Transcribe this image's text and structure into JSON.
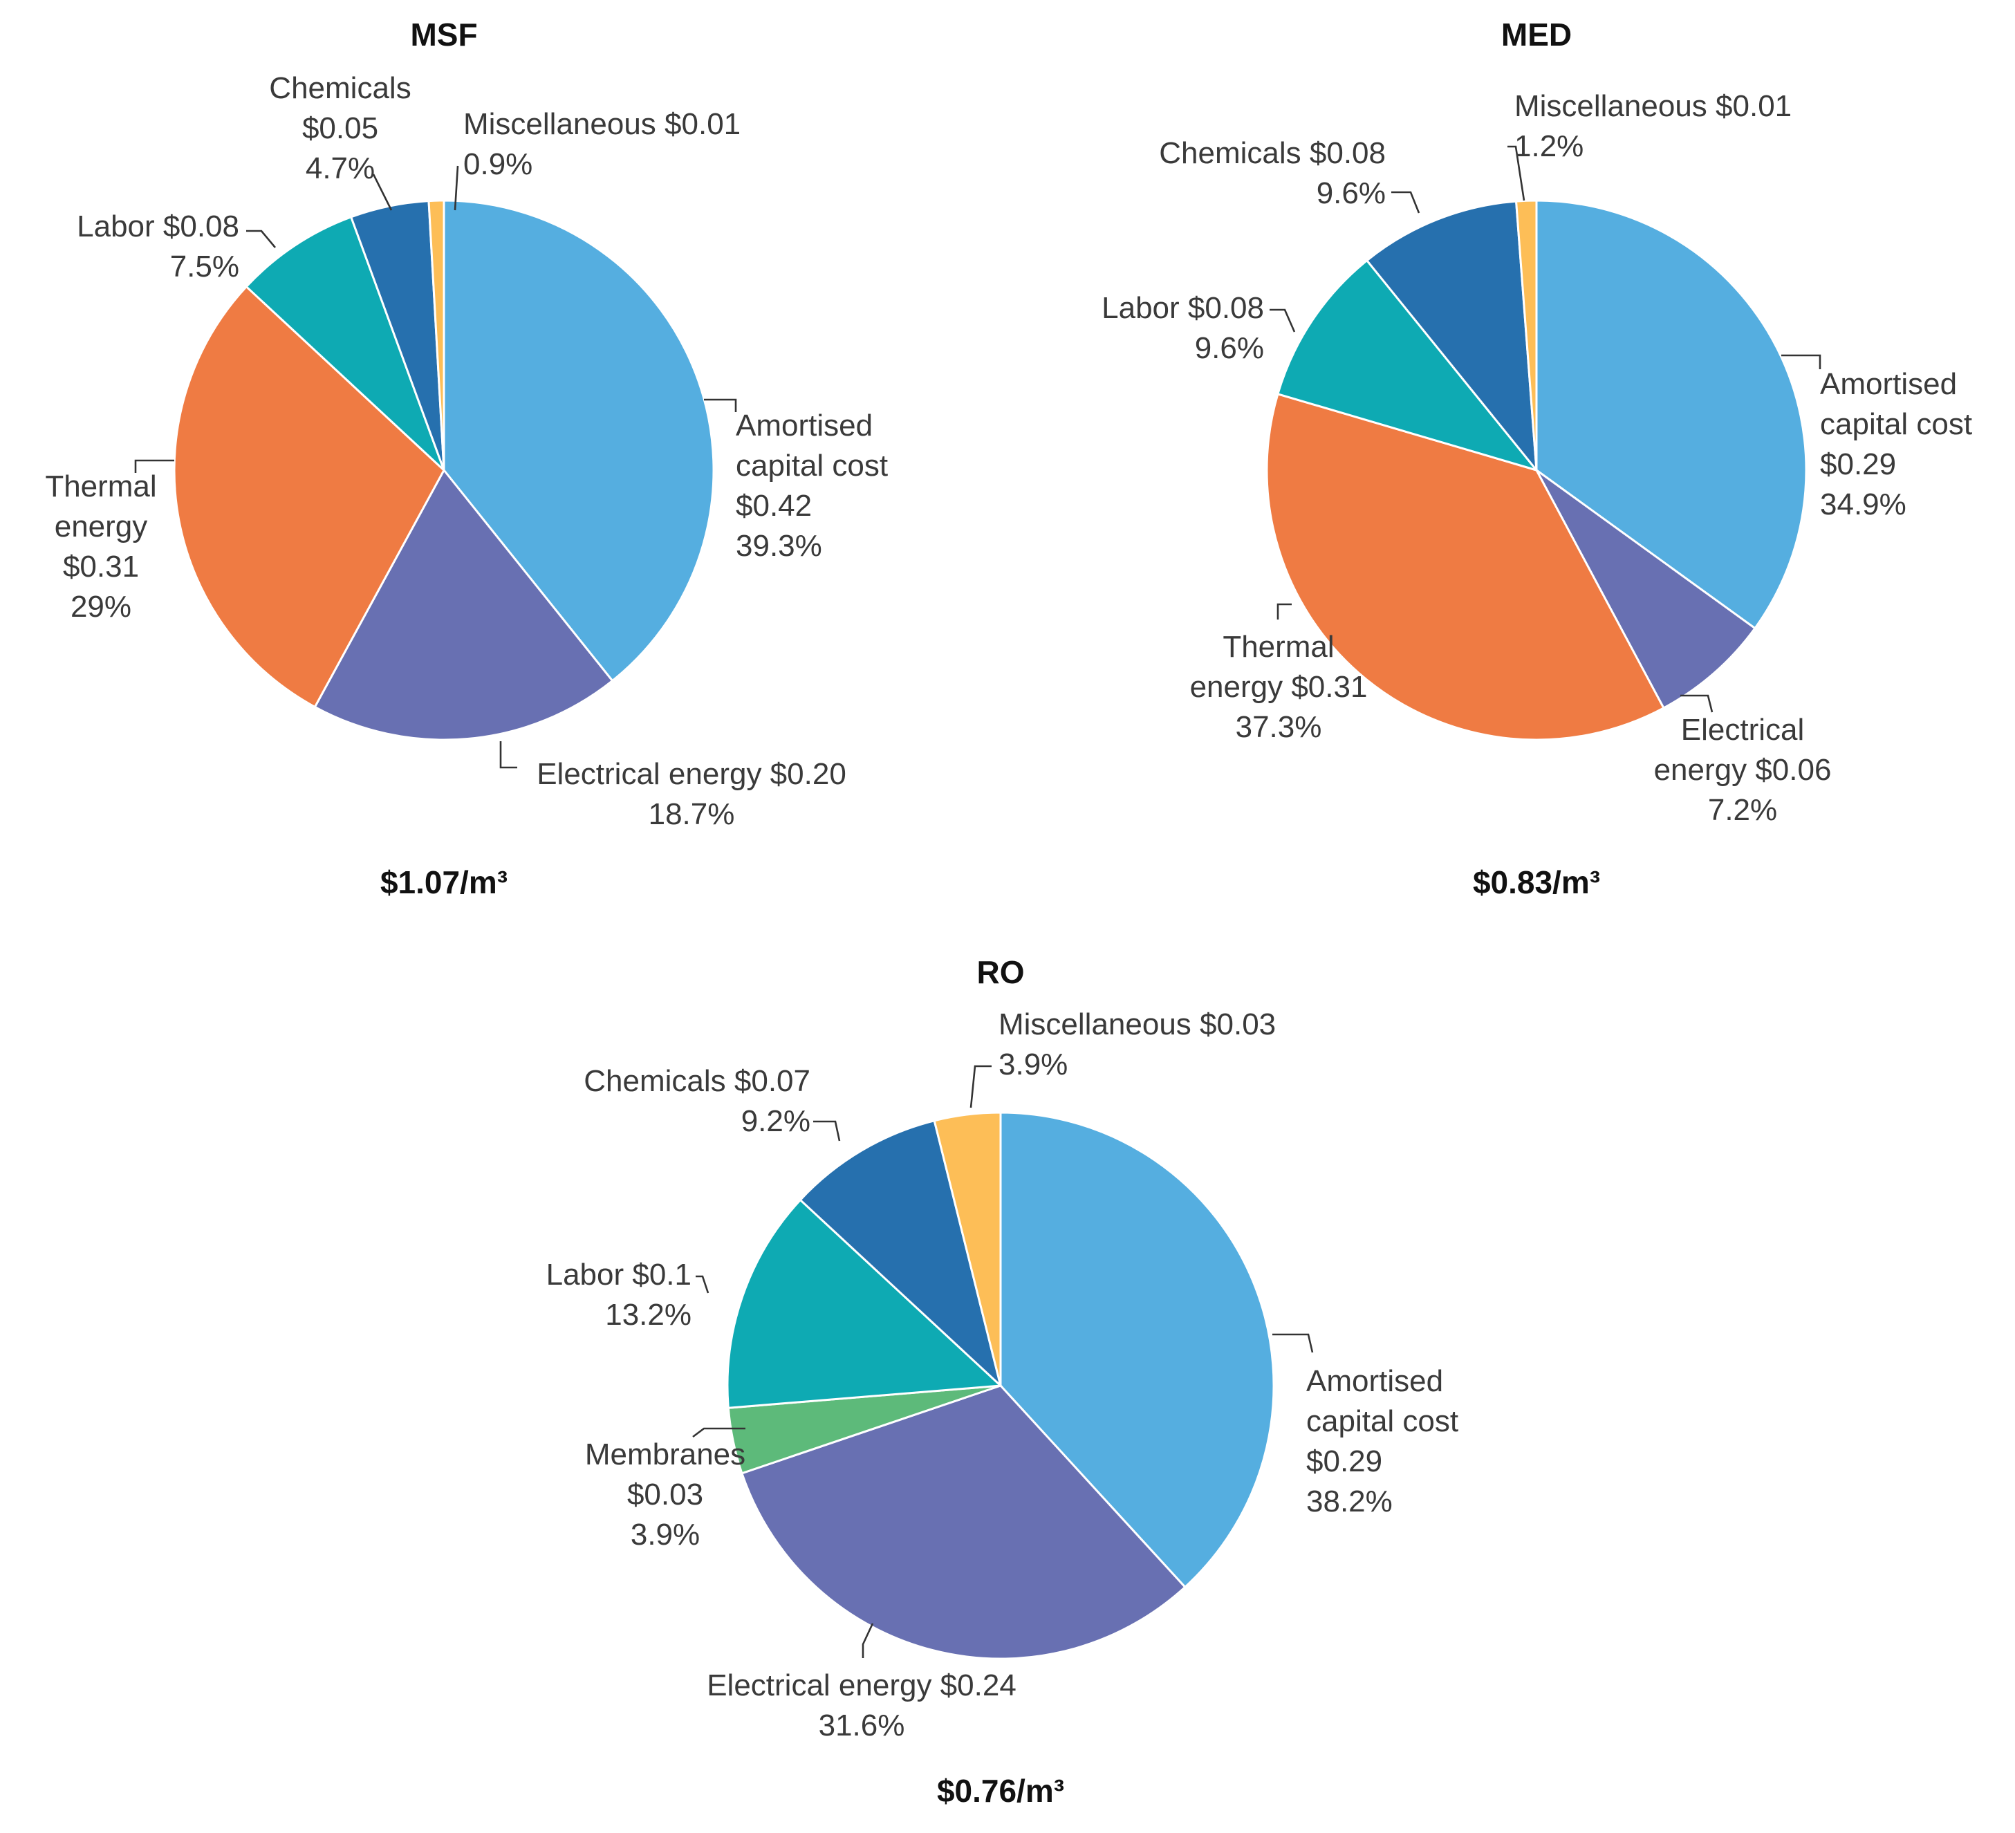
{
  "colors": {
    "capital": "#55aee0",
    "electrical": "#6870b2",
    "thermal": "#ef7b43",
    "labor": "#0eaab3",
    "chemicals": "#2670ae",
    "misc": "#fdbe57",
    "membranes": "#5dba7a"
  },
  "chart_data": [
    {
      "type": "pie",
      "title": "MSF",
      "total": "$1.07/m³",
      "slices": [
        {
          "key": "capital",
          "value": 0.42,
          "percent": 39.3,
          "lines": [
            "Amortised",
            "capital cost",
            "$0.42",
            "39.3%"
          ]
        },
        {
          "key": "electrical",
          "value": 0.2,
          "percent": 18.7,
          "lines": [
            "Electrical energy $0.20",
            "18.7%"
          ]
        },
        {
          "key": "thermal",
          "value": 0.31,
          "percent": 29.0,
          "lines": [
            "Thermal",
            "energy",
            "$0.31",
            "29%"
          ]
        },
        {
          "key": "labor",
          "value": 0.08,
          "percent": 7.5,
          "lines": [
            "Labor $0.08",
            "7.5%"
          ]
        },
        {
          "key": "chemicals",
          "value": 0.05,
          "percent": 4.7,
          "lines": [
            "Chemicals",
            "$0.05",
            "4.7%"
          ]
        },
        {
          "key": "misc",
          "value": 0.01,
          "percent": 0.9,
          "lines": [
            "Miscellaneous $0.01",
            "0.9%"
          ]
        }
      ]
    },
    {
      "type": "pie",
      "title": "MED",
      "total": "$0.83/m³",
      "slices": [
        {
          "key": "capital",
          "value": 0.29,
          "percent": 34.9,
          "lines": [
            "Amortised",
            "capital cost",
            "$0.29",
            "34.9%"
          ]
        },
        {
          "key": "electrical",
          "value": 0.06,
          "percent": 7.2,
          "lines": [
            "Electrical",
            "energy $0.06",
            "7.2%"
          ]
        },
        {
          "key": "thermal",
          "value": 0.31,
          "percent": 37.3,
          "lines": [
            "Thermal",
            "energy $0.31",
            "37.3%"
          ]
        },
        {
          "key": "labor",
          "value": 0.08,
          "percent": 9.6,
          "lines": [
            "Labor $0.08",
            "9.6%"
          ]
        },
        {
          "key": "chemicals",
          "value": 0.08,
          "percent": 9.6,
          "lines": [
            "Chemicals $0.08",
            "9.6%"
          ]
        },
        {
          "key": "misc",
          "value": 0.01,
          "percent": 1.2,
          "lines": [
            "Miscellaneous $0.01",
            "1.2%"
          ]
        }
      ]
    },
    {
      "type": "pie",
      "title": "RO",
      "total": "$0.76/m³",
      "slices": [
        {
          "key": "capital",
          "value": 0.29,
          "percent": 38.2,
          "lines": [
            "Amortised",
            "capital cost",
            "$0.29",
            "38.2%"
          ]
        },
        {
          "key": "electrical",
          "value": 0.24,
          "percent": 31.6,
          "lines": [
            "Electrical energy $0.24",
            "31.6%"
          ]
        },
        {
          "key": "membranes",
          "value": 0.03,
          "percent": 3.9,
          "lines": [
            "Membranes",
            "$0.03",
            "3.9%"
          ]
        },
        {
          "key": "labor",
          "value": 0.1,
          "percent": 13.2,
          "lines": [
            "Labor $0.1",
            "13.2%"
          ]
        },
        {
          "key": "chemicals",
          "value": 0.07,
          "percent": 9.2,
          "lines": [
            "Chemicals $0.07",
            "9.2%"
          ]
        },
        {
          "key": "misc",
          "value": 0.03,
          "percent": 3.9,
          "lines": [
            "Miscellaneous $0.03",
            "3.9%"
          ]
        }
      ]
    }
  ]
}
